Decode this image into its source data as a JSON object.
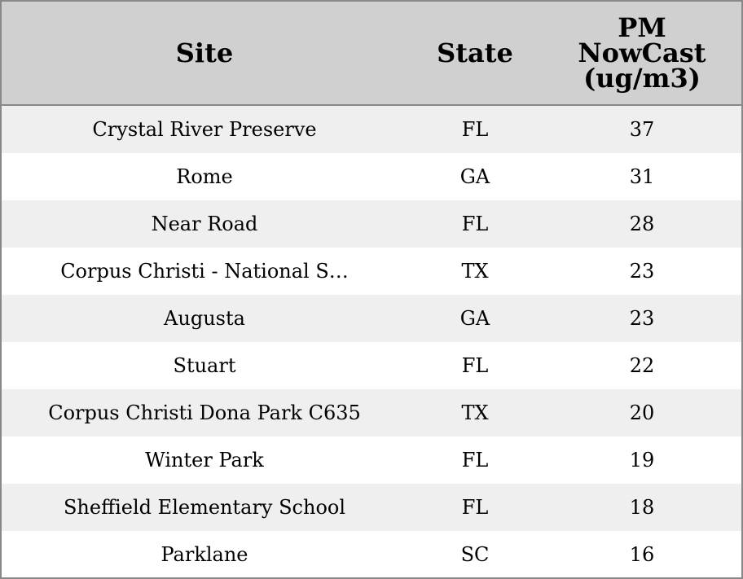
{
  "table": {
    "columns": [
      "Site",
      "State",
      "PM\nNowCast\n(ug/m3)"
    ],
    "rows": [
      [
        "Crystal River Preserve",
        "FL",
        37
      ],
      [
        "Rome",
        "GA",
        31
      ],
      [
        "Near Road",
        "FL",
        28
      ],
      [
        "Corpus Christi - National S…",
        "TX",
        23
      ],
      [
        "Augusta",
        "GA",
        23
      ],
      [
        "Stuart",
        "FL",
        22
      ],
      [
        "Corpus Christi Dona Park C635",
        "TX",
        20
      ],
      [
        "Winter Park",
        "FL",
        19
      ],
      [
        "Sheffield Elementary School",
        "FL",
        18
      ],
      [
        "Parklane",
        "SC",
        16
      ]
    ]
  }
}
